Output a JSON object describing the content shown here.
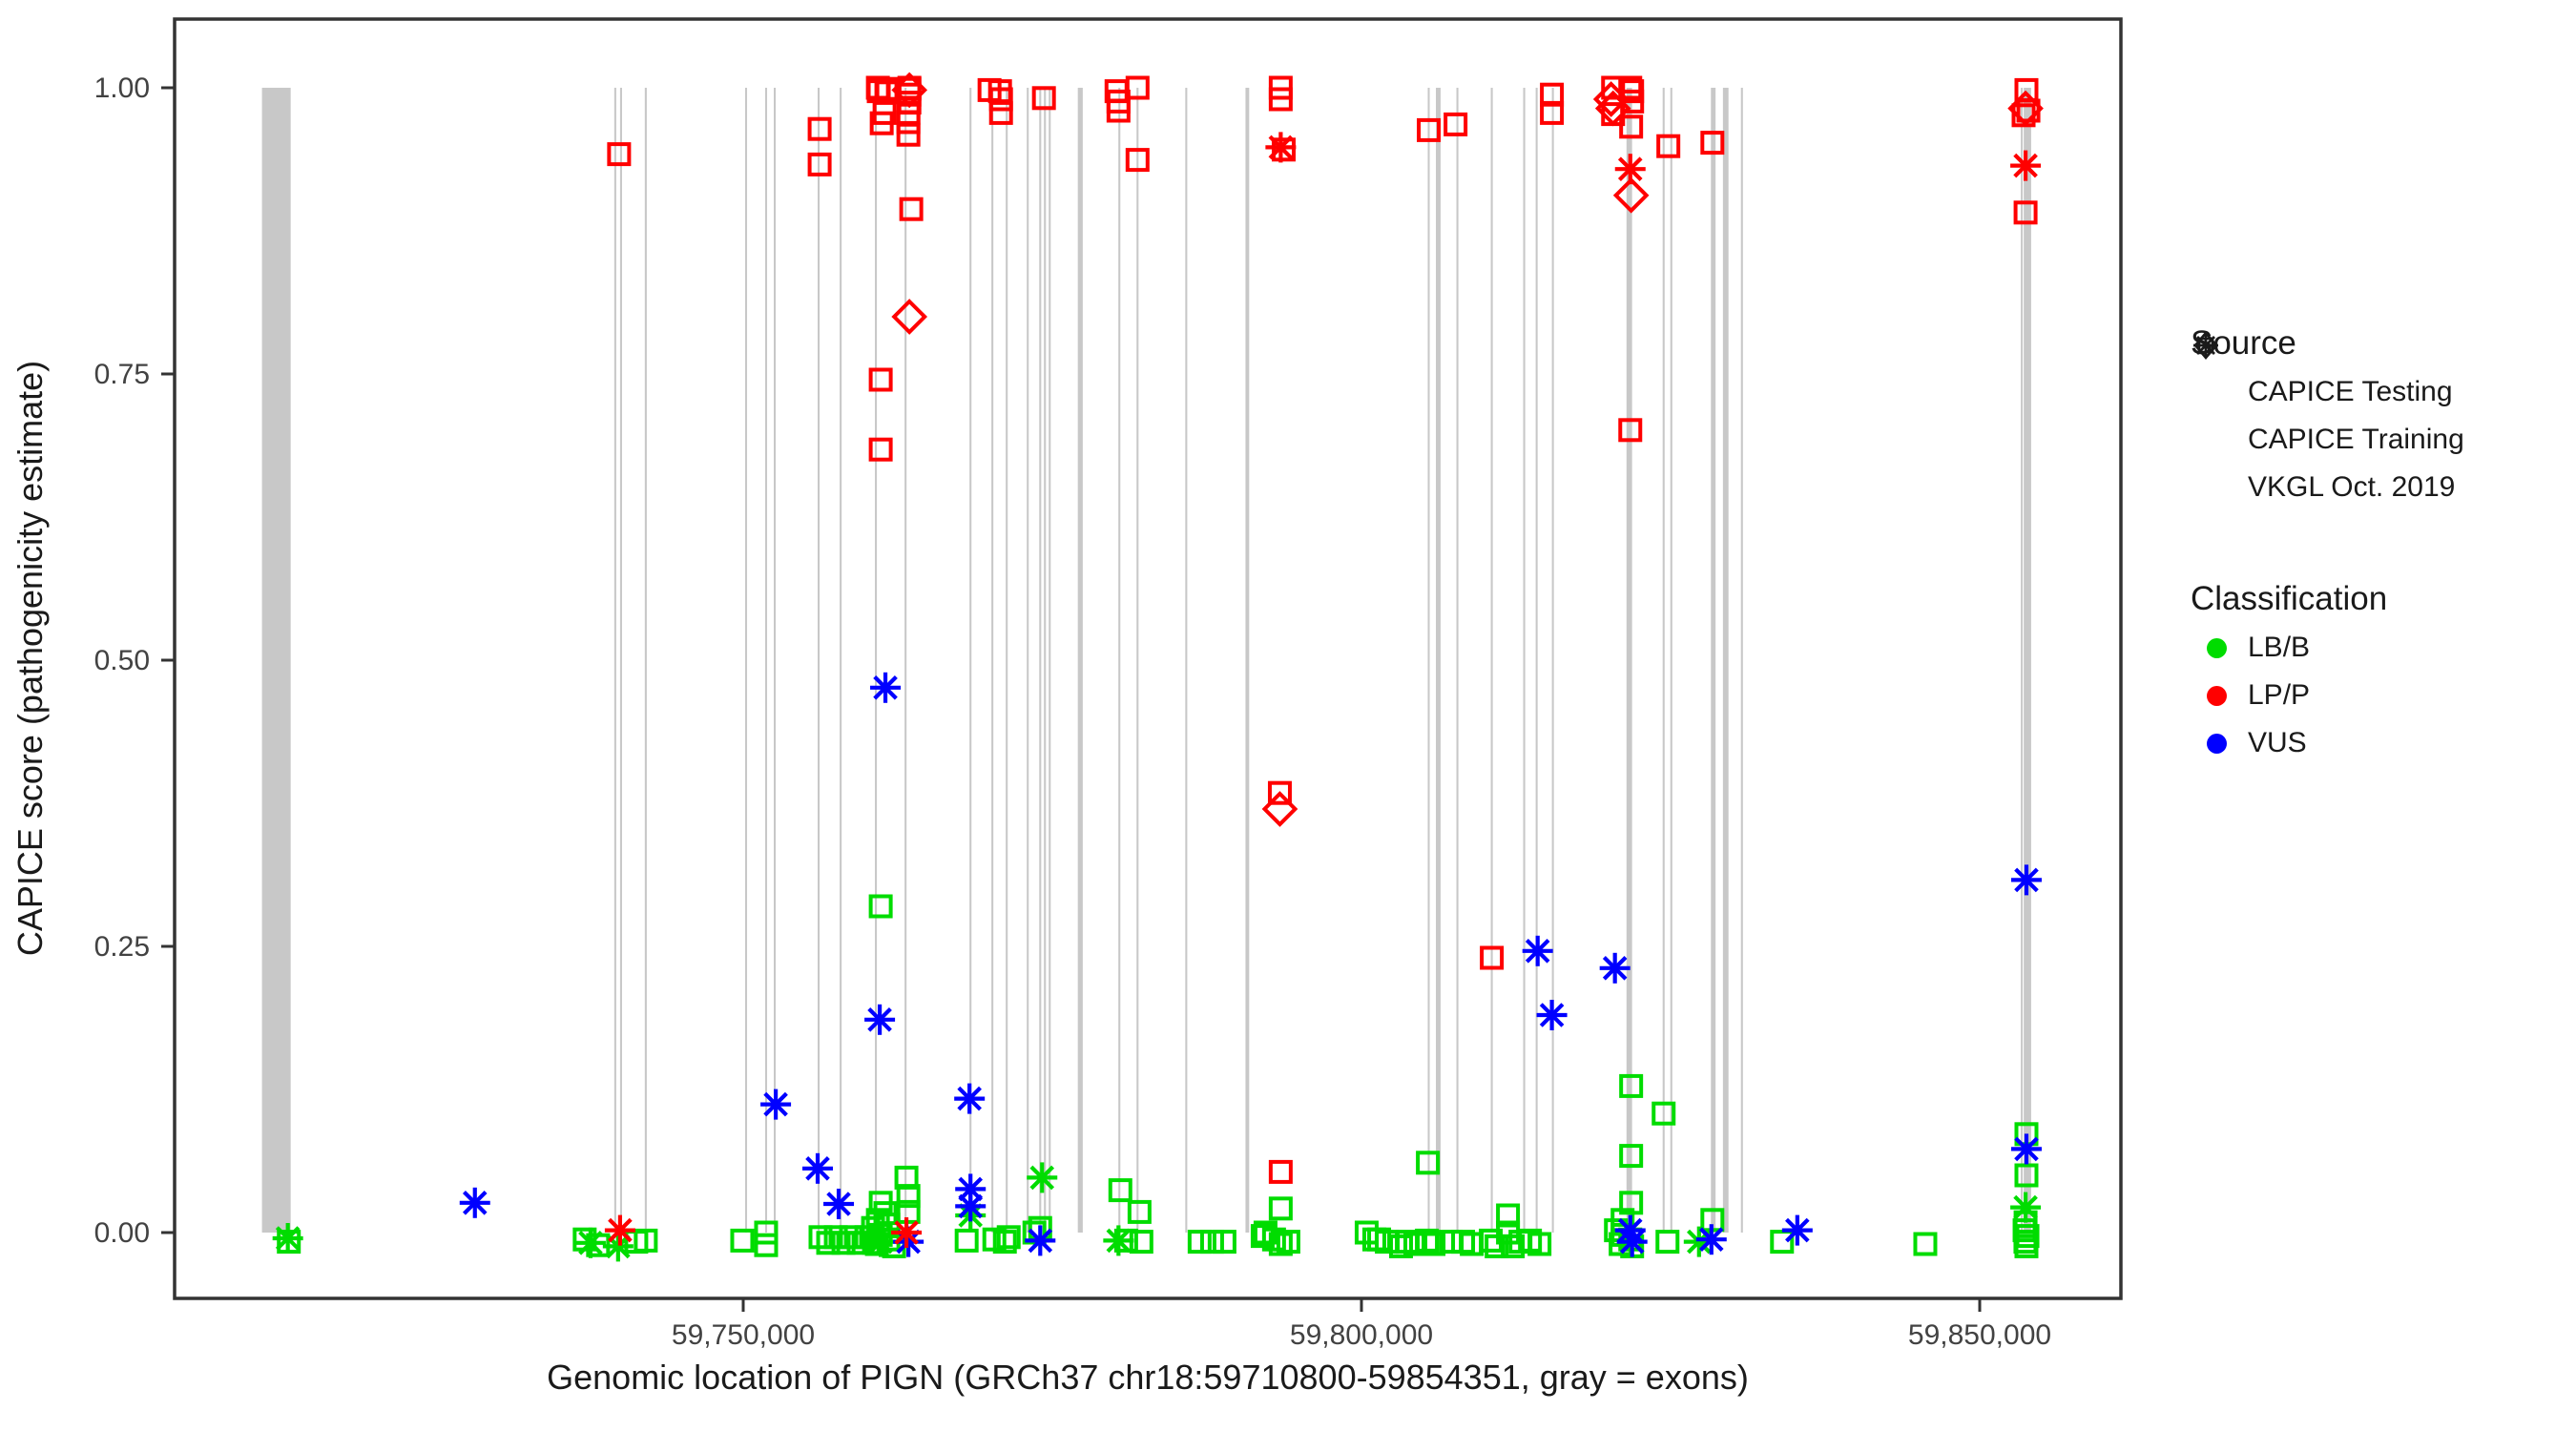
{
  "chart_data": {
    "type": "scatter",
    "xlabel": "Genomic location of PIGN (GRCh37 chr18:59710800-59854351, gray = exons)",
    "ylabel": "CAPICE score (pathogenicity estimate)",
    "x_domain": [
      59703980,
      59861510
    ],
    "y_domain": [
      -0.0575,
      1.06
    ],
    "grid": "off",
    "legend_position": "right",
    "x_ticks": [
      {
        "value": 59750000,
        "label": "59,750,000"
      },
      {
        "value": 59800000,
        "label": "59,800,000"
      },
      {
        "value": 59850000,
        "label": "59,850,000"
      }
    ],
    "y_ticks": [
      {
        "value": 1.0,
        "label": "1.00"
      },
      {
        "value": 0.75,
        "label": "0.75"
      },
      {
        "value": 0.5,
        "label": "0.50"
      },
      {
        "value": 0.25,
        "label": "0.25"
      },
      {
        "value": 0.0,
        "label": "0.00"
      }
    ],
    "colors": {
      "LB/B": "#00DC00",
      "LP/P": "#FF0000",
      "VUS": "#0000FF",
      "exon": "#C8C8C8",
      "axis_text": "#424242",
      "axis_line": "#333333",
      "title_text": "#1a1a1a"
    },
    "source_shapes": {
      "T": "CAPICE Testing (diamond)",
      "R": "CAPICE Training (square)",
      "V": "VKGL Oct. 2019 (asterisk)"
    },
    "class_codes": {
      "B": "LB/B",
      "P": "LP/P",
      "U": "VUS"
    },
    "exons_bp_center_width": [
      [
        59712240,
        2320
      ],
      [
        59739650,
        160
      ],
      [
        59740120,
        160
      ],
      [
        59742120,
        160
      ],
      [
        59750230,
        160
      ],
      [
        59751850,
        160
      ],
      [
        59752550,
        160
      ],
      [
        59756100,
        160
      ],
      [
        59757880,
        160
      ],
      [
        59760730,
        160
      ],
      [
        59763130,
        160
      ],
      [
        59768380,
        160
      ],
      [
        59770150,
        160
      ],
      [
        59771310,
        160
      ],
      [
        59773010,
        160
      ],
      [
        59774020,
        160
      ],
      [
        59774400,
        160
      ],
      [
        59774790,
        160
      ],
      [
        59777260,
        400
      ],
      [
        59780420,
        160
      ],
      [
        59781890,
        160
      ],
      [
        59785830,
        160
      ],
      [
        59790770,
        300
      ],
      [
        59805440,
        160
      ],
      [
        59806210,
        380
      ],
      [
        59807760,
        160
      ],
      [
        59810540,
        160
      ],
      [
        59813160,
        160
      ],
      [
        59814170,
        160
      ],
      [
        59815480,
        160
      ],
      [
        59821660,
        450
      ],
      [
        59824440,
        160
      ],
      [
        59825060,
        160
      ],
      [
        59828450,
        380
      ],
      [
        59829460,
        450
      ],
      [
        59830770,
        160
      ],
      [
        59853400,
        120
      ],
      [
        59853860,
        600
      ]
    ],
    "points": [
      [
        59739960,
        0.942,
        "R",
        "P"
      ],
      [
        59756180,
        0.964,
        "R",
        "P"
      ],
      [
        59756180,
        0.933,
        "R",
        "P"
      ],
      [
        59760890,
        1.0,
        "R",
        "P"
      ],
      [
        59761580,
        0.999,
        "R",
        "P"
      ],
      [
        59760960,
        0.997,
        "R",
        "P"
      ],
      [
        59761660,
        0.996,
        "R",
        "P"
      ],
      [
        59761430,
        0.978,
        "R",
        "P"
      ],
      [
        59761200,
        0.969,
        "R",
        "P"
      ],
      [
        59763440,
        1.0,
        "R",
        "P"
      ],
      [
        59763440,
        0.999,
        "R",
        "P"
      ],
      [
        59763440,
        0.998,
        "T",
        "P"
      ],
      [
        59763440,
        0.994,
        "R",
        "P"
      ],
      [
        59763440,
        0.987,
        "R",
        "P"
      ],
      [
        59763360,
        0.978,
        "R",
        "P"
      ],
      [
        59763360,
        0.97,
        "R",
        "P"
      ],
      [
        59763360,
        0.959,
        "R",
        "P"
      ],
      [
        59763590,
        0.894,
        "R",
        "P"
      ],
      [
        59769920,
        0.998,
        "R",
        "P"
      ],
      [
        59770770,
        0.997,
        "R",
        "P"
      ],
      [
        59770850,
        0.99,
        "R",
        "P"
      ],
      [
        59770850,
        0.978,
        "R",
        "P"
      ],
      [
        59774320,
        0.991,
        "R",
        "P"
      ],
      [
        59780190,
        0.997,
        "R",
        "P"
      ],
      [
        59780350,
        0.988,
        "R",
        "P"
      ],
      [
        59780350,
        0.98,
        "R",
        "P"
      ],
      [
        59781890,
        1.0,
        "R",
        "P"
      ],
      [
        59781890,
        0.937,
        "R",
        "P"
      ],
      [
        59793470,
        1.0,
        "R",
        "P"
      ],
      [
        59793470,
        0.99,
        "R",
        "P"
      ],
      [
        59793470,
        0.948,
        "V",
        "P"
      ],
      [
        59793710,
        0.946,
        "R",
        "P"
      ],
      [
        59793400,
        0.384,
        "R",
        "P"
      ],
      [
        59793400,
        0.37,
        "T",
        "P"
      ],
      [
        59793470,
        0.053,
        "R",
        "P"
      ],
      [
        59805440,
        0.963,
        "R",
        "P"
      ],
      [
        59807610,
        0.968,
        "R",
        "P"
      ],
      [
        59810540,
        0.24,
        "R",
        "P"
      ],
      [
        59815400,
        0.994,
        "R",
        "P"
      ],
      [
        59815400,
        0.978,
        "R",
        "P"
      ],
      [
        59820350,
        1.0,
        "R",
        "P"
      ],
      [
        59820190,
        0.99,
        "T",
        "P"
      ],
      [
        59820350,
        0.982,
        "T",
        "P"
      ],
      [
        59820350,
        0.977,
        "R",
        "P"
      ],
      [
        59821740,
        1.0,
        "R",
        "P"
      ],
      [
        59821890,
        0.997,
        "R",
        "P"
      ],
      [
        59821890,
        0.988,
        "R",
        "P"
      ],
      [
        59821810,
        0.966,
        "R",
        "P"
      ],
      [
        59824820,
        0.949,
        "R",
        "P"
      ],
      [
        59828380,
        0.952,
        "R",
        "P"
      ],
      [
        59821740,
        0.929,
        "V",
        "P"
      ],
      [
        59821810,
        0.906,
        "T",
        "P"
      ],
      [
        59821740,
        0.701,
        "R",
        "P"
      ],
      [
        59853780,
        0.998,
        "R",
        "P"
      ],
      [
        59853710,
        0.982,
        "T",
        "P"
      ],
      [
        59853940,
        0.98,
        "R",
        "P"
      ],
      [
        59853550,
        0.976,
        "R",
        "P"
      ],
      [
        59853710,
        0.932,
        "V",
        "P"
      ],
      [
        59853710,
        0.891,
        "R",
        "P"
      ],
      [
        59763440,
        0.8,
        "T",
        "P"
      ],
      [
        59761120,
        0.745,
        "R",
        "P"
      ],
      [
        59761120,
        0.684,
        "R",
        "P"
      ],
      [
        59763200,
        0.0,
        "V",
        "P"
      ],
      [
        59740040,
        0.002,
        "V",
        "P"
      ],
      [
        59761500,
        0.476,
        "V",
        "U"
      ],
      [
        59761040,
        0.186,
        "V",
        "U"
      ],
      [
        59752630,
        0.112,
        "V",
        "U"
      ],
      [
        59756020,
        0.056,
        "V",
        "U"
      ],
      [
        59757720,
        0.025,
        "V",
        "U"
      ],
      [
        59768300,
        0.117,
        "V",
        "U"
      ],
      [
        59768380,
        0.038,
        "V",
        "U"
      ],
      [
        59768380,
        0.023,
        "V",
        "U"
      ],
      [
        59728300,
        0.026,
        "V",
        "U"
      ],
      [
        59763360,
        -0.008,
        "V",
        "U"
      ],
      [
        59774020,
        -0.007,
        "V",
        "U"
      ],
      [
        59814250,
        0.246,
        "V",
        "U"
      ],
      [
        59815400,
        0.19,
        "V",
        "U"
      ],
      [
        59820500,
        0.231,
        "V",
        "U"
      ],
      [
        59821740,
        0.002,
        "V",
        "U"
      ],
      [
        59821890,
        -0.008,
        "V",
        "U"
      ],
      [
        59828300,
        -0.006,
        "V",
        "U"
      ],
      [
        59835250,
        0.002,
        "V",
        "U"
      ],
      [
        59853780,
        0.308,
        "V",
        "U"
      ],
      [
        59853780,
        0.073,
        "V",
        "U"
      ],
      [
        59761120,
        0.285,
        "R",
        "B"
      ],
      [
        59793470,
        0.021,
        "R",
        "B"
      ],
      [
        59763200,
        0.048,
        "R",
        "B"
      ],
      [
        59763360,
        0.032,
        "R",
        "B"
      ],
      [
        59763360,
        0.018,
        "R",
        "B"
      ],
      [
        59713170,
        -0.005,
        "V",
        "B"
      ],
      [
        59713250,
        -0.008,
        "R",
        "B"
      ],
      [
        59737180,
        -0.006,
        "R",
        "B"
      ],
      [
        59737650,
        -0.009,
        "V",
        "B"
      ],
      [
        59738260,
        -0.011,
        "R",
        "B"
      ],
      [
        59739880,
        -0.012,
        "V",
        "B"
      ],
      [
        59741350,
        -0.008,
        "R",
        "B"
      ],
      [
        59742120,
        -0.007,
        "R",
        "B"
      ],
      [
        59749920,
        -0.007,
        "R",
        "B"
      ],
      [
        59751850,
        0.0,
        "R",
        "B"
      ],
      [
        59751850,
        -0.011,
        "R",
        "B"
      ],
      [
        59756250,
        -0.004,
        "R",
        "B"
      ],
      [
        59756870,
        -0.009,
        "R",
        "B"
      ],
      [
        59757490,
        -0.004,
        "R",
        "B"
      ],
      [
        59758110,
        -0.009,
        "R",
        "B"
      ],
      [
        59758720,
        -0.004,
        "R",
        "B"
      ],
      [
        59759340,
        -0.009,
        "R",
        "B"
      ],
      [
        59759960,
        -0.004,
        "R",
        "B"
      ],
      [
        59760580,
        -0.009,
        "R",
        "B"
      ],
      [
        59760500,
        0.004,
        "R",
        "B"
      ],
      [
        59761120,
        -0.002,
        "R",
        "B"
      ],
      [
        59761120,
        -0.008,
        "V",
        "B"
      ],
      [
        59761740,
        -0.006,
        "R",
        "B"
      ],
      [
        59762200,
        -0.012,
        "R",
        "B"
      ],
      [
        59760810,
        -0.01,
        "R",
        "B"
      ],
      [
        59761120,
        0.026,
        "R",
        "B"
      ],
      [
        59761500,
        0.017,
        "R",
        "B"
      ],
      [
        59760890,
        0.011,
        "R",
        "B"
      ],
      [
        59761740,
        0.007,
        "R",
        "B"
      ],
      [
        59768380,
        0.015,
        "V",
        "B"
      ],
      [
        59768070,
        -0.007,
        "R",
        "B"
      ],
      [
        59770310,
        -0.006,
        "R",
        "B"
      ],
      [
        59771160,
        -0.008,
        "R",
        "B"
      ],
      [
        59771470,
        -0.004,
        "R",
        "B"
      ],
      [
        59773550,
        0.0,
        "R",
        "B"
      ],
      [
        59774020,
        0.004,
        "R",
        "B"
      ],
      [
        59774170,
        0.048,
        "V",
        "B"
      ],
      [
        59780500,
        0.037,
        "R",
        "B"
      ],
      [
        59782050,
        0.018,
        "R",
        "B"
      ],
      [
        59780350,
        -0.007,
        "V",
        "B"
      ],
      [
        59780970,
        -0.007,
        "R",
        "B"
      ],
      [
        59782200,
        -0.008,
        "R",
        "B"
      ],
      [
        59786910,
        -0.008,
        "R",
        "B"
      ],
      [
        59787920,
        -0.008,
        "R",
        "B"
      ],
      [
        59788920,
        -0.008,
        "R",
        "B"
      ],
      [
        59792240,
        0.0,
        "R",
        "B"
      ],
      [
        59792930,
        -0.006,
        "R",
        "B"
      ],
      [
        59793470,
        -0.01,
        "R",
        "B"
      ],
      [
        59794090,
        -0.008,
        "R",
        "B"
      ],
      [
        59792010,
        -0.003,
        "R",
        "B"
      ],
      [
        59800420,
        0.0,
        "R",
        "B"
      ],
      [
        59801430,
        -0.006,
        "R",
        "B"
      ],
      [
        59801040,
        -0.006,
        "R",
        "B"
      ],
      [
        59802050,
        -0.008,
        "R",
        "B"
      ],
      [
        59803200,
        -0.012,
        "R",
        "B"
      ],
      [
        59803740,
        -0.008,
        "R",
        "B"
      ],
      [
        59804360,
        -0.01,
        "R",
        "B"
      ],
      [
        59805290,
        -0.007,
        "R",
        "B"
      ],
      [
        59805370,
        0.061,
        "R",
        "B"
      ],
      [
        59805830,
        -0.01,
        "R",
        "B"
      ],
      [
        59807220,
        -0.008,
        "R",
        "B"
      ],
      [
        59808220,
        -0.008,
        "R",
        "B"
      ],
      [
        59808920,
        -0.01,
        "R",
        "B"
      ],
      [
        59810460,
        -0.007,
        "R",
        "B"
      ],
      [
        59810930,
        -0.012,
        "R",
        "B"
      ],
      [
        59811850,
        0.015,
        "R",
        "B"
      ],
      [
        59811850,
        0.0,
        "R",
        "B"
      ],
      [
        59812240,
        -0.012,
        "R",
        "B"
      ],
      [
        59812860,
        -0.008,
        "R",
        "B"
      ],
      [
        59813630,
        -0.007,
        "R",
        "B"
      ],
      [
        59814400,
        -0.01,
        "R",
        "B"
      ],
      [
        59821810,
        0.128,
        "R",
        "B"
      ],
      [
        59824440,
        0.104,
        "R",
        "B"
      ],
      [
        59821810,
        0.067,
        "R",
        "B"
      ],
      [
        59821810,
        0.026,
        "R",
        "B"
      ],
      [
        59821120,
        0.011,
        "R",
        "B"
      ],
      [
        59820580,
        0.002,
        "R",
        "B"
      ],
      [
        59821120,
        -0.002,
        "R",
        "B"
      ],
      [
        59821740,
        -0.006,
        "R",
        "B"
      ],
      [
        59820960,
        -0.01,
        "R",
        "B"
      ],
      [
        59821890,
        -0.012,
        "R",
        "B"
      ],
      [
        59824750,
        -0.008,
        "R",
        "B"
      ],
      [
        59828380,
        0.011,
        "R",
        "B"
      ],
      [
        59827300,
        -0.008,
        "V",
        "B"
      ],
      [
        59834010,
        -0.008,
        "R",
        "B"
      ],
      [
        59845600,
        -0.01,
        "R",
        "B"
      ],
      [
        59853780,
        0.086,
        "R",
        "B"
      ],
      [
        59853780,
        0.05,
        "R",
        "B"
      ],
      [
        59853710,
        0.022,
        "V",
        "B"
      ],
      [
        59853710,
        0.009,
        "R",
        "B"
      ],
      [
        59853630,
        0.002,
        "R",
        "B"
      ],
      [
        59853860,
        -0.003,
        "R",
        "B"
      ],
      [
        59853700,
        -0.008,
        "R",
        "B"
      ],
      [
        59853780,
        -0.012,
        "R",
        "B"
      ]
    ]
  },
  "legend": {
    "source_title": "Source",
    "source_items": [
      {
        "label": "CAPICE Testing",
        "marker": "diamond"
      },
      {
        "label": "CAPICE Training",
        "marker": "square"
      },
      {
        "label": "VKGL Oct. 2019",
        "marker": "asterisk"
      }
    ],
    "classification_title": "Classification",
    "class_items": [
      {
        "label": "LB/B",
        "color": "#00DC00"
      },
      {
        "label": "LP/P",
        "color": "#FF0000"
      },
      {
        "label": "VUS",
        "color": "#0000FF"
      }
    ]
  }
}
